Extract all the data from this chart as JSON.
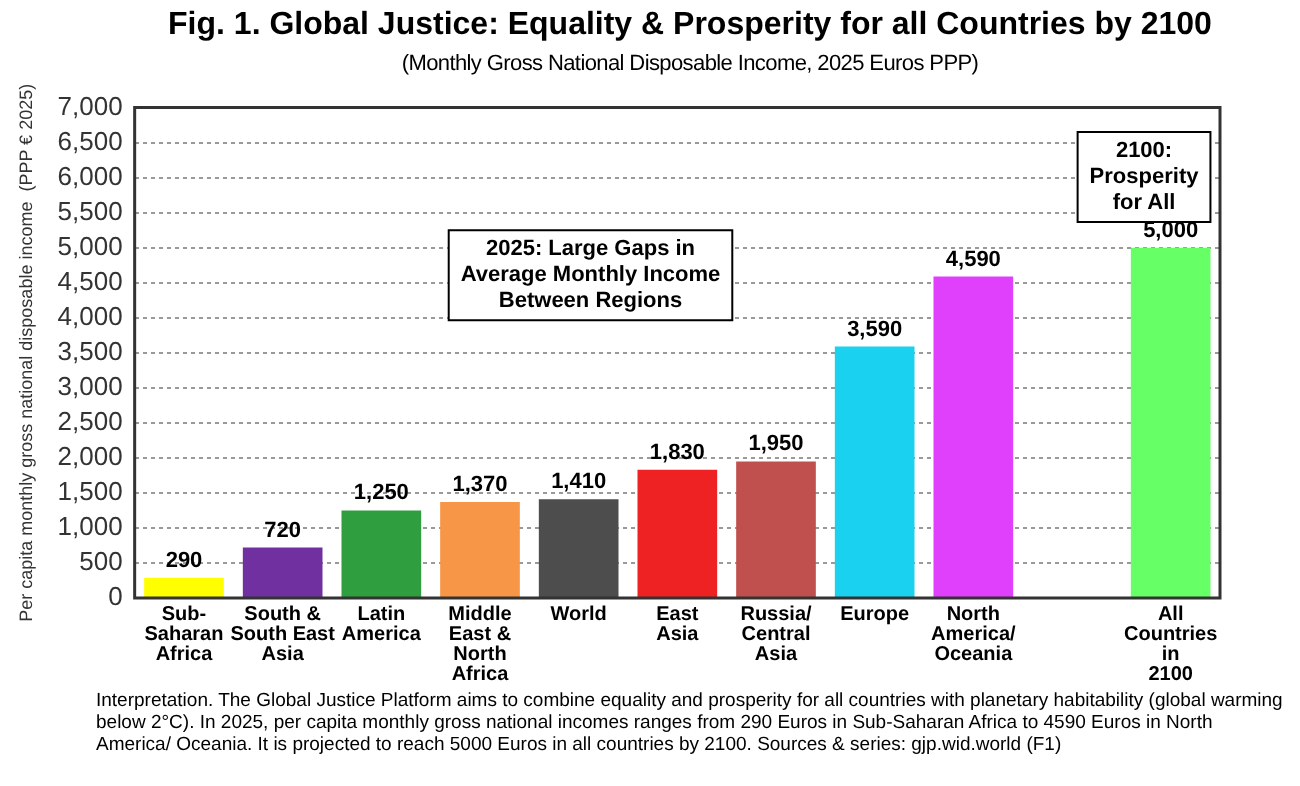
{
  "chart_data": {
    "type": "bar",
    "title": "Fig. 1. Global Justice: Equality & Prosperity for all Countries by 2100",
    "subtitle": "(Monthly Gross National Disposable Income, 2025 Euros PPP)",
    "ylabel": "Per capita monthly gross national disposable income  (PPP € 2025)",
    "categories": [
      "Sub-\nSaharan\nAfrica",
      "South &\nSouth East\nAsia",
      "Latin\nAmerica",
      "Middle\nEast &\nNorth\nAfrica",
      "World",
      "East\nAsia",
      "Russia/\nCentral\nAsia",
      "Europe",
      "North\nAmerica/\nOceania",
      null,
      "All\nCountries\nin\n2100"
    ],
    "values": [
      290,
      720,
      1250,
      1370,
      1410,
      1830,
      1950,
      3590,
      4590,
      null,
      5000
    ],
    "value_labels": [
      "290",
      "720",
      "1,250",
      "1,370",
      "1,410",
      "1,830",
      "1,950",
      "3,590",
      "4,590",
      null,
      "5,000"
    ],
    "colors": [
      "#ffff00",
      "#7030a0",
      "#2e9e3e",
      "#f79646",
      "#4d4d4d",
      "#ee2222",
      "#c0504d",
      "#1ad1f0",
      "#e040fb",
      "#ffffff",
      "#66ff66"
    ],
    "ylim": [
      0,
      7000
    ],
    "yticks": [
      0,
      500,
      {
        "value": 1000,
        "label": "1,000"
      },
      {
        "value": 1500,
        "label": "1,500"
      },
      {
        "value": 2000,
        "label": "2,000"
      },
      {
        "value": 2500,
        "label": "2,500"
      },
      {
        "value": 3000,
        "label": "3,000"
      },
      {
        "value": 3500,
        "label": "3,500"
      },
      {
        "value": 4000,
        "label": "4,000"
      },
      {
        "value": 4500,
        "label": "4,500"
      },
      {
        "value": 5000,
        "label": "5,000"
      },
      {
        "value": 5500,
        "label": "5,500"
      },
      {
        "value": 6000,
        "label": "6,000"
      },
      {
        "value": 6500,
        "label": "6,500"
      },
      {
        "value": 7000,
        "label": "7,000"
      }
    ],
    "grid": "y",
    "annotations": [
      "2025: Large Gaps in\nAverage Monthly Income\nBetween Regions",
      "2100:\nProsperity\nfor All",
      "Interpretation. The Global Justice Platform aims to combine equality and prosperity for all countries with planetary habitability (global warming below 2°C). In 2025, per capita monthly gross national incomes ranges from 290 Euros in Sub-Saharan Africa to 4590 Euros in North America/ Oceania. It is projected to reach 5000 Euros in all countries by 2100. Sources & series: gjp.wid.world (F1)"
    ]
  }
}
